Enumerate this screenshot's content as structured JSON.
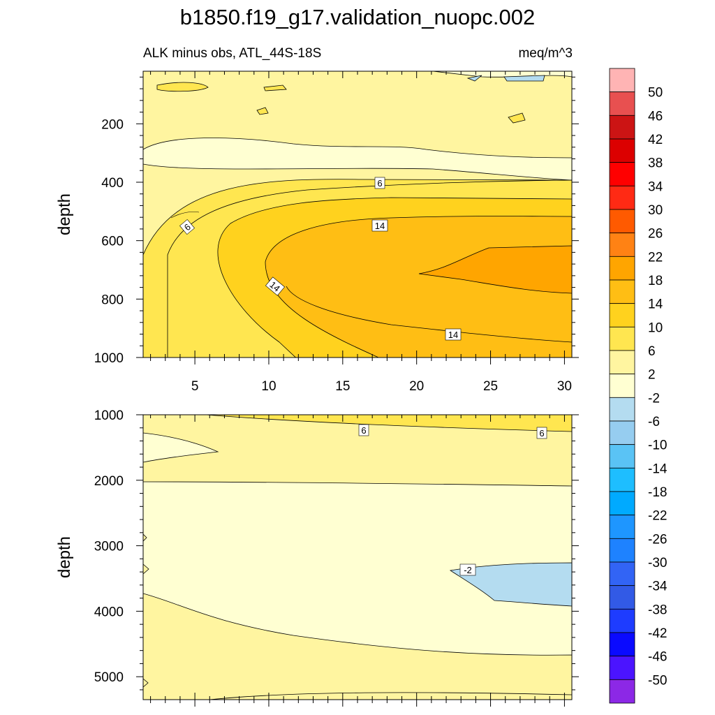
{
  "title": "b1850.f19_g17.validation_nuopc.002",
  "chart_data": {
    "type": "heatmap",
    "subtitle_left": "ALK minus obs, ATL_44S-18S",
    "subtitle_right": "meq/m^3",
    "colorbar": {
      "labels": [
        "50",
        "46",
        "42",
        "38",
        "34",
        "30",
        "26",
        "22",
        "18",
        "14",
        "10",
        "6",
        "2",
        "-2",
        "-6",
        "-10",
        "-14",
        "-18",
        "-22",
        "-26",
        "-30",
        "-34",
        "-38",
        "-42",
        "-46",
        "-50"
      ],
      "colors": [
        "#FFB4B4",
        "#E85050",
        "#CC1414",
        "#DC0000",
        "#FF0000",
        "#FF2A14",
        "#FF5A00",
        "#FF8214",
        "#FFA500",
        "#FFBE14",
        "#FFD21E",
        "#FFE650",
        "#FFF5A0",
        "#FFFFD2",
        "#B4DCF0",
        "#96CDF0",
        "#5AC3F5",
        "#1EBEFF",
        "#00AAFF",
        "#1E96FF",
        "#1E82FF",
        "#3264F5",
        "#325AE6",
        "#1E3CFF",
        "#0A0AFF",
        "#4B14FF",
        "#8C28E6"
      ]
    },
    "panels": [
      {
        "name": "upper",
        "xlabel": "",
        "ylabel": "depth",
        "xlim": [
          1.5,
          30.5
        ],
        "ylim": [
          1000,
          20
        ],
        "xticks": [
          "5",
          "10",
          "15",
          "20",
          "25",
          "30"
        ],
        "yticks": [
          "200",
          "400",
          "600",
          "800",
          "1000"
        ],
        "contour_labels": [
          "6",
          "6",
          "14",
          "14",
          "14"
        ]
      },
      {
        "name": "lower",
        "xlabel": "",
        "ylabel": "depth",
        "xlim": [
          1.5,
          30.5
        ],
        "ylim": [
          5350,
          1000
        ],
        "yticks": [
          "1000",
          "2000",
          "3000",
          "4000",
          "5000"
        ],
        "contour_labels": [
          "6",
          "6",
          "-2"
        ]
      }
    ]
  }
}
